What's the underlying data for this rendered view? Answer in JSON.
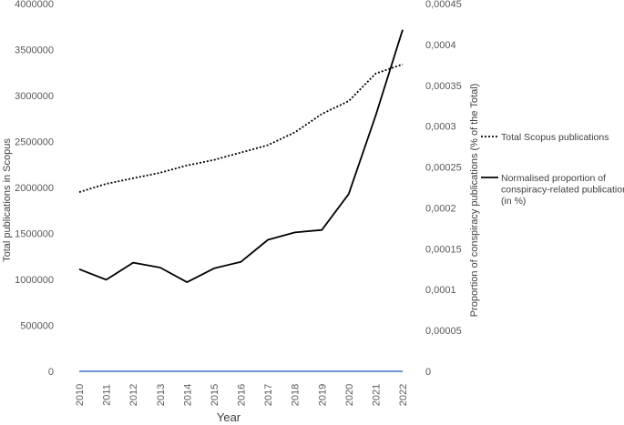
{
  "chart_data": {
    "type": "line",
    "xlabel": "Year",
    "ylabel_left": "Total publications in Scopus",
    "ylabel_right": "Proportion of conspiracy publications (% of the Total)",
    "x": [
      "2010",
      "2011",
      "2012",
      "2013",
      "2014",
      "2015",
      "2016",
      "2017",
      "2018",
      "2019",
      "2020",
      "2021",
      "2022"
    ],
    "ylim_left": [
      0,
      4000000
    ],
    "yticks_left": [
      "0",
      "500000",
      "1000000",
      "1500000",
      "2000000",
      "2500000",
      "3000000",
      "3500000",
      "4000000"
    ],
    "ylim_right": [
      0,
      0.00045
    ],
    "yticks_right": [
      "0",
      "0,00005",
      "0,0001",
      "0,00015",
      "0,0002",
      "0,00025",
      "0,0003",
      "0,00035",
      "0,0004",
      "0,00045"
    ],
    "grid": false,
    "legend_position": "right",
    "series": [
      {
        "name": "Total Scopus publications",
        "axis": "left",
        "style": "dotted",
        "color": "#000000",
        "values": [
          1950000,
          2040000,
          2100000,
          2160000,
          2240000,
          2300000,
          2380000,
          2460000,
          2600000,
          2800000,
          2940000,
          3240000,
          3340000
        ]
      },
      {
        "name": "Normalised proportion of conspiracy-related publications (in %)",
        "axis": "right",
        "style": "solid",
        "color": "#000000",
        "values": [
          0.000125,
          0.000112,
          0.000133,
          0.000127,
          0.000109,
          0.000126,
          0.000134,
          0.000161,
          0.00017,
          0.000173,
          0.000217,
          0.000313,
          0.000418
        ]
      },
      {
        "axis": "right",
        "style": "solid",
        "color": "#4472c4",
        "values": [
          0,
          0,
          0,
          0,
          0,
          0,
          0,
          0,
          0,
          0,
          0,
          0,
          0
        ]
      }
    ],
    "legend": [
      {
        "series_index": 0,
        "lines": [
          "Total Scopus publications"
        ]
      },
      {
        "series_index": 1,
        "lines": [
          "Normalised proportion of",
          "conspiracy-related publications",
          "(in %)"
        ]
      }
    ]
  }
}
